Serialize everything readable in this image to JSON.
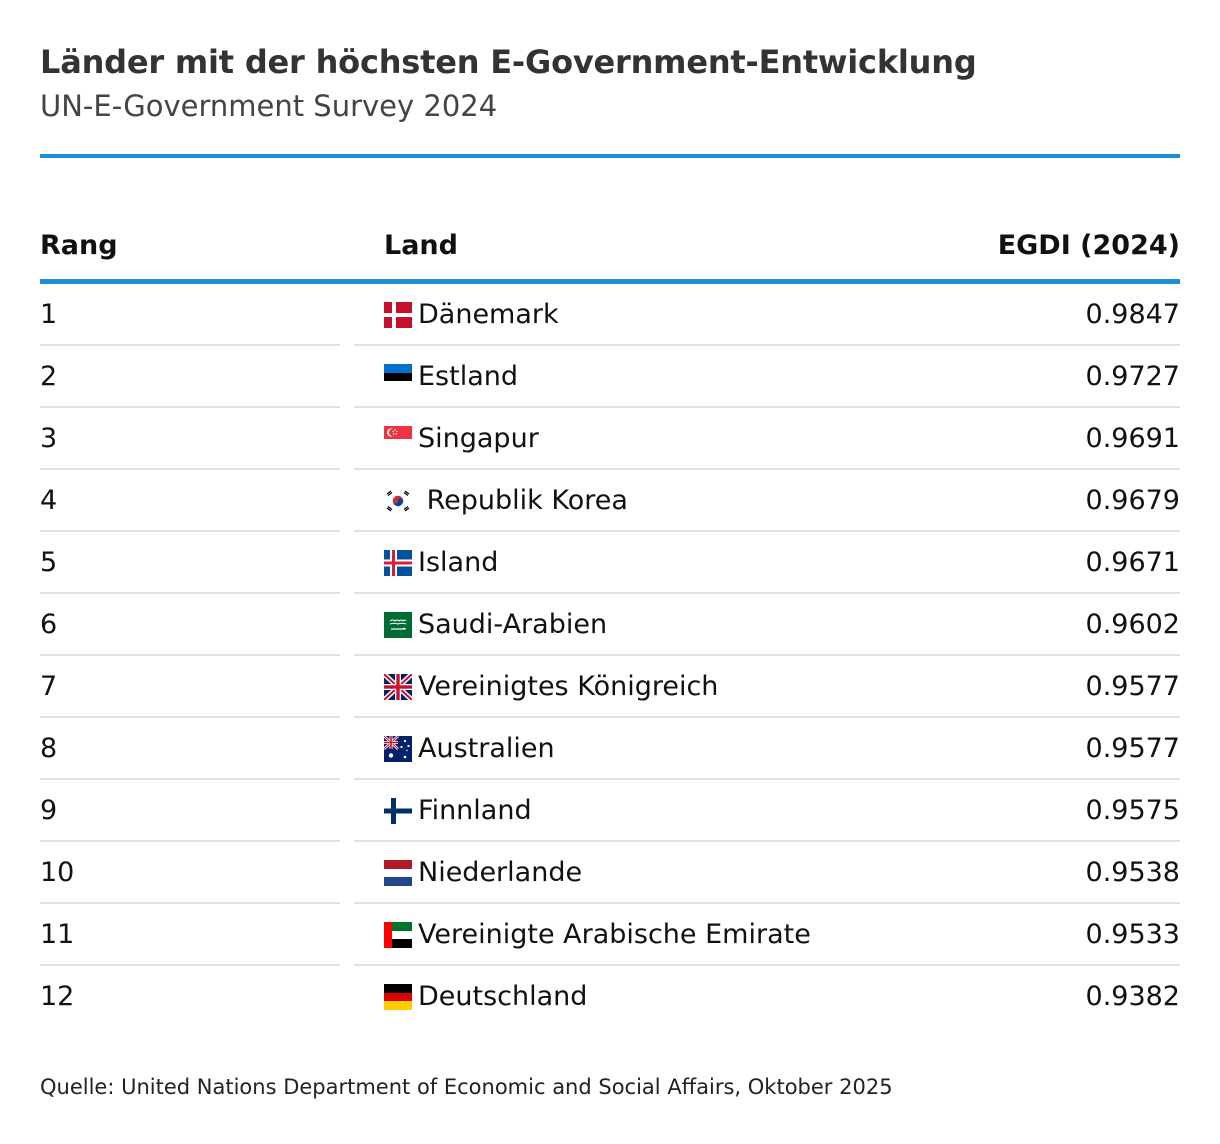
{
  "title": "Länder mit der höchsten E-Government-Entwicklung",
  "subtitle": "UN-E-Government Survey 2024",
  "columns": {
    "rank": "Rang",
    "country": "Land",
    "value": "EGDI (2024)"
  },
  "chart_data": {
    "type": "table",
    "columns": [
      "Rang",
      "Land",
      "EGDI (2024)"
    ],
    "rows": [
      {
        "rank": "1",
        "country": "Dänemark",
        "value": "0.9847",
        "flag_icon": "denmark-flag-icon"
      },
      {
        "rank": "2",
        "country": "Estland",
        "value": "0.9727",
        "flag_icon": "estonia-flag-icon"
      },
      {
        "rank": "3",
        "country": "Singapur",
        "value": "0.9691",
        "flag_icon": "singapore-flag-icon"
      },
      {
        "rank": "4",
        "country": " Republik Korea",
        "value": "0.9679",
        "flag_icon": "south-korea-flag-icon"
      },
      {
        "rank": "5",
        "country": "Island",
        "value": "0.9671",
        "flag_icon": "iceland-flag-icon"
      },
      {
        "rank": "6",
        "country": "Saudi-Arabien",
        "value": "0.9602",
        "flag_icon": "saudi-arabia-flag-icon"
      },
      {
        "rank": "7",
        "country": "Vereinigtes Königreich",
        "value": "0.9577",
        "flag_icon": "united-kingdom-flag-icon"
      },
      {
        "rank": "8",
        "country": "Australien",
        "value": "0.9577",
        "flag_icon": "australia-flag-icon"
      },
      {
        "rank": "9",
        "country": "Finnland",
        "value": "0.9575",
        "flag_icon": "finland-flag-icon"
      },
      {
        "rank": "10",
        "country": "Niederlande",
        "value": "0.9538",
        "flag_icon": "netherlands-flag-icon"
      },
      {
        "rank": "11",
        "country": "Vereinigte Arabische Emirate",
        "value": "0.9533",
        "flag_icon": "uae-flag-icon"
      },
      {
        "rank": "12",
        "country": "Deutschland",
        "value": "0.9382",
        "flag_icon": "germany-flag-icon"
      }
    ]
  },
  "source": "Quelle: United Nations Department of Economic and Social Affairs, Oktober 2025",
  "colors": {
    "accent": "#1a8fd6",
    "row_separator": "#e2e2e2",
    "title": "#333333"
  }
}
